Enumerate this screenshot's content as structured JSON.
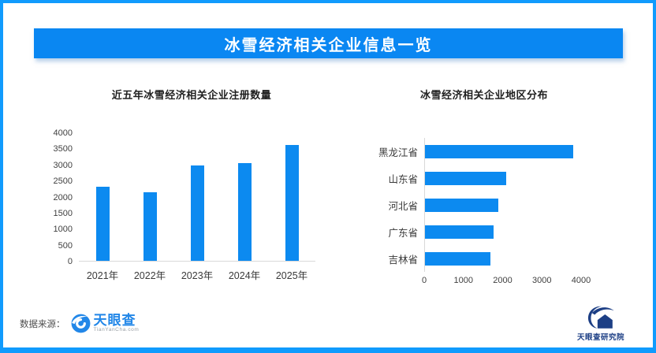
{
  "banner": {
    "title": "冰雪经济相关企业信息一览"
  },
  "footer": {
    "source_label": "数据来源：",
    "logo_text": "天眼查",
    "logo_domain": "TianYanCha.com",
    "institute": "天眼查研究院"
  },
  "colors": {
    "frame": "#109bfd",
    "banner": "#0a87f2",
    "bar": "#0c8af0",
    "brand_blue": "#2287e8",
    "navy": "#1d3f85"
  },
  "chart_data": [
    {
      "type": "bar",
      "orientation": "vertical",
      "title": "近五年冰雪经济相关企业注册数量",
      "categories": [
        "2021年",
        "2022年",
        "2023年",
        "2024年",
        "2025年"
      ],
      "values": [
        2310,
        2140,
        2970,
        3050,
        3610
      ],
      "ylim": [
        0,
        4000
      ],
      "yticks": [
        0,
        500,
        1000,
        1500,
        2000,
        2500,
        3000,
        3500,
        4000
      ],
      "grid": false,
      "legend": "none"
    },
    {
      "type": "bar",
      "orientation": "horizontal",
      "title": "冰雪经济相关企业地区分布",
      "categories": [
        "黑龙江省",
        "山东省",
        "河北省",
        "广东省",
        "吉林省"
      ],
      "values": [
        3780,
        2080,
        1870,
        1750,
        1670
      ],
      "xlim": [
        0,
        4000
      ],
      "xticks": [
        0,
        1000,
        2000,
        3000,
        4000
      ],
      "grid": false,
      "legend": "none"
    }
  ]
}
